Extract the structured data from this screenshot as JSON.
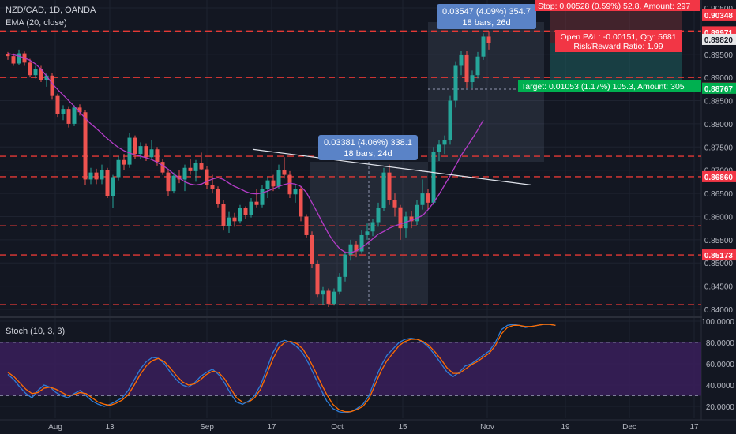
{
  "header": {
    "symbol_line": "NZD/CAD, 1D, OANDA",
    "indicator_line": "EMA (20, close)",
    "stoch_label": "Stoch (10, 3, 3)"
  },
  "colors": {
    "background": "#131722",
    "grid": "#1e2330",
    "up": "#26a69a",
    "down": "#ef5350",
    "ema": "#b43cc8",
    "stoch_k": "#2e7dd7",
    "stoch_d": "#ff6d00",
    "stoch_band": "#3a1f5a",
    "red_level": "#e53935",
    "tag_red": "#f23645",
    "tag_green": "#00b050",
    "callout": "#5a83c7"
  },
  "chart_data": [
    {
      "type": "candlestick",
      "title": "NZD/CAD, 1D, OANDA",
      "x_tick_labels": [
        "Aug",
        "13",
        "Sep",
        "17",
        "Oct",
        "15",
        "Nov",
        "19",
        "Dec",
        "17"
      ],
      "y_tick_labels": [
        "0.90500",
        "0.90000",
        "0.89500",
        "0.89000",
        "0.88500",
        "0.88000",
        "0.87500",
        "0.87000",
        "0.86500",
        "0.86000",
        "0.85500",
        "0.85000",
        "0.84500",
        "0.84000"
      ],
      "ylim": [
        0.8393,
        0.906
      ],
      "candles": [
        [
          0.895,
          0.8955,
          0.8938,
          0.8946
        ],
        [
          0.8946,
          0.8952,
          0.8925,
          0.893
        ],
        [
          0.893,
          0.896,
          0.8926,
          0.8952
        ],
        [
          0.8952,
          0.8956,
          0.8925,
          0.8932
        ],
        [
          0.8932,
          0.894,
          0.89,
          0.8905
        ],
        [
          0.8905,
          0.8925,
          0.8898,
          0.8918
        ],
        [
          0.8918,
          0.8925,
          0.889,
          0.8895
        ],
        [
          0.8895,
          0.891,
          0.888,
          0.8904
        ],
        [
          0.8904,
          0.891,
          0.8852,
          0.886
        ],
        [
          0.886,
          0.8865,
          0.8815,
          0.8822
        ],
        [
          0.8822,
          0.884,
          0.8808,
          0.8832
        ],
        [
          0.8832,
          0.8838,
          0.8792,
          0.88
        ],
        [
          0.88,
          0.884,
          0.8795,
          0.8835
        ],
        [
          0.8835,
          0.8842,
          0.8818,
          0.8825
        ],
        [
          0.8825,
          0.883,
          0.8668,
          0.868
        ],
        [
          0.868,
          0.8705,
          0.867,
          0.8695
        ],
        [
          0.8695,
          0.8703,
          0.867,
          0.868
        ],
        [
          0.868,
          0.8712,
          0.867,
          0.87
        ],
        [
          0.87,
          0.8705,
          0.864,
          0.8645
        ],
        [
          0.8645,
          0.869,
          0.8618,
          0.8685
        ],
        [
          0.8685,
          0.873,
          0.8678,
          0.8722
        ],
        [
          0.8722,
          0.8735,
          0.87,
          0.8712
        ],
        [
          0.8712,
          0.878,
          0.8705,
          0.877
        ],
        [
          0.877,
          0.8775,
          0.8725,
          0.8735
        ],
        [
          0.8735,
          0.876,
          0.8725,
          0.8752
        ],
        [
          0.8752,
          0.8758,
          0.872,
          0.8728
        ],
        [
          0.8728,
          0.8765,
          0.8722,
          0.8745
        ],
        [
          0.8745,
          0.875,
          0.871,
          0.8718
        ],
        [
          0.8718,
          0.8725,
          0.869,
          0.8695
        ],
        [
          0.8695,
          0.87,
          0.8645,
          0.8655
        ],
        [
          0.8655,
          0.8695,
          0.865,
          0.8688
        ],
        [
          0.8688,
          0.87,
          0.8672,
          0.868
        ],
        [
          0.868,
          0.8712,
          0.8655,
          0.8705
        ],
        [
          0.8705,
          0.8725,
          0.869,
          0.8698
        ],
        [
          0.8698,
          0.8722,
          0.8675,
          0.8715
        ],
        [
          0.8715,
          0.8738,
          0.87,
          0.8702
        ],
        [
          0.8702,
          0.8708,
          0.866,
          0.8668
        ],
        [
          0.8668,
          0.869,
          0.865,
          0.866
        ],
        [
          0.866,
          0.8665,
          0.862,
          0.8628
        ],
        [
          0.8628,
          0.8635,
          0.857,
          0.858
        ],
        [
          0.858,
          0.861,
          0.8565,
          0.8598
        ],
        [
          0.8598,
          0.8608,
          0.8578,
          0.859
        ],
        [
          0.859,
          0.8625,
          0.8585,
          0.8618
        ],
        [
          0.8618,
          0.8622,
          0.8595,
          0.8603
        ],
        [
          0.8603,
          0.864,
          0.8598,
          0.8632
        ],
        [
          0.8632,
          0.866,
          0.862,
          0.8625
        ],
        [
          0.8625,
          0.8668,
          0.862,
          0.866
        ],
        [
          0.866,
          0.8685,
          0.864,
          0.8678
        ],
        [
          0.8678,
          0.869,
          0.8655,
          0.8665
        ],
        [
          0.8665,
          0.8712,
          0.866,
          0.87
        ],
        [
          0.87,
          0.8728,
          0.8682,
          0.869
        ],
        [
          0.869,
          0.8698,
          0.864,
          0.8648
        ],
        [
          0.8648,
          0.8668,
          0.863,
          0.866
        ],
        [
          0.866,
          0.8665,
          0.859,
          0.86
        ],
        [
          0.86,
          0.8605,
          0.8555,
          0.856
        ],
        [
          0.856,
          0.8568,
          0.849,
          0.8498
        ],
        [
          0.8498,
          0.8505,
          0.8425,
          0.8432
        ],
        [
          0.8432,
          0.8448,
          0.841,
          0.844
        ],
        [
          0.844,
          0.8445,
          0.8405,
          0.8412
        ],
        [
          0.8412,
          0.8445,
          0.8408,
          0.8438
        ],
        [
          0.8438,
          0.8478,
          0.8432,
          0.847
        ],
        [
          0.847,
          0.8525,
          0.846,
          0.8518
        ],
        [
          0.8518,
          0.855,
          0.8505,
          0.854
        ],
        [
          0.854,
          0.8548,
          0.8512,
          0.8525
        ],
        [
          0.8525,
          0.857,
          0.852,
          0.856
        ],
        [
          0.856,
          0.8585,
          0.855,
          0.8568
        ],
        [
          0.8568,
          0.8595,
          0.8558,
          0.8588
        ],
        [
          0.8588,
          0.863,
          0.8578,
          0.8618
        ],
        [
          0.8618,
          0.8705,
          0.8612,
          0.8695
        ],
        [
          0.8695,
          0.8712,
          0.8625,
          0.8635
        ],
        [
          0.8635,
          0.865,
          0.86,
          0.862
        ],
        [
          0.862,
          0.8625,
          0.855,
          0.8575
        ],
        [
          0.8575,
          0.861,
          0.8555,
          0.86
        ],
        [
          0.86,
          0.8612,
          0.8575,
          0.859
        ],
        [
          0.859,
          0.8635,
          0.8582,
          0.8625
        ],
        [
          0.8625,
          0.868,
          0.8615,
          0.865
        ],
        [
          0.865,
          0.866,
          0.8615,
          0.863
        ],
        [
          0.863,
          0.875,
          0.8625,
          0.874
        ],
        [
          0.874,
          0.8765,
          0.872,
          0.8755
        ],
        [
          0.8755,
          0.8775,
          0.8735,
          0.8765
        ],
        [
          0.8765,
          0.886,
          0.8755,
          0.885
        ],
        [
          0.885,
          0.8935,
          0.8835,
          0.8925
        ],
        [
          0.8925,
          0.8958,
          0.8905,
          0.8948
        ],
        [
          0.8948,
          0.8958,
          0.8878,
          0.889
        ],
        [
          0.889,
          0.8915,
          0.8878,
          0.8905
        ],
        [
          0.8905,
          0.8955,
          0.8898,
          0.8945
        ],
        [
          0.8945,
          0.8995,
          0.8938,
          0.8988
        ],
        [
          0.8988,
          0.9,
          0.896,
          0.8975
        ]
      ],
      "ema_20": [
        0.8952,
        0.8949,
        0.8946,
        0.8942,
        0.8937,
        0.8929,
        0.8918,
        0.8903,
        0.8887,
        0.8874,
        0.8862,
        0.885,
        0.8838,
        0.8825,
        0.8812,
        0.88,
        0.879,
        0.8779,
        0.8768,
        0.8758,
        0.8749,
        0.8742,
        0.8737,
        0.8733,
        0.873,
        0.8727,
        0.8723,
        0.8717,
        0.871,
        0.8702,
        0.8692,
        0.8683,
        0.8675,
        0.867,
        0.8668,
        0.867,
        0.8676,
        0.8681,
        0.8684,
        0.868,
        0.8672,
        0.8665,
        0.866,
        0.8654,
        0.865,
        0.8649,
        0.8651,
        0.8655,
        0.866,
        0.8665,
        0.8669,
        0.8672,
        0.867,
        0.8665,
        0.8652,
        0.863,
        0.8608,
        0.8585,
        0.8563,
        0.8545,
        0.8531,
        0.8523,
        0.8522,
        0.8526,
        0.8533,
        0.8542,
        0.8552,
        0.8562,
        0.8568,
        0.8575,
        0.858,
        0.8584,
        0.8588,
        0.8592,
        0.8597,
        0.8602,
        0.8615,
        0.863,
        0.8648,
        0.8668,
        0.8688,
        0.871,
        0.8732,
        0.875,
        0.8768,
        0.8787,
        0.8808
      ],
      "trendline": [
        0.8745,
        0.8668
      ],
      "horizontal_levels": [
        0.9,
        0.89,
        0.873,
        0.8686,
        0.858,
        0.85173,
        0.841
      ],
      "price_tags": [
        {
          "value": 0.90348,
          "text": "0.90348",
          "style": "red"
        },
        {
          "value": 0.89983,
          "text": "0.89983",
          "style": "red"
        },
        {
          "value": 0.89971,
          "text": "0.89971",
          "style": "red"
        },
        {
          "value": 0.8982,
          "text": "0.89820",
          "style": "grey"
        },
        {
          "value": 0.8877,
          "text": "0.88770",
          "style": "red"
        },
        {
          "value": 0.88767,
          "text": "0.88767",
          "style": "green"
        },
        {
          "value": 0.8686,
          "text": "0.86860",
          "style": "red"
        },
        {
          "value": 0.85173,
          "text": "0.85173",
          "style": "red"
        }
      ],
      "callouts": [
        {
          "line1": "0.03381 (4.06%) 338.1",
          "line2": "18 bars, 24d"
        },
        {
          "line1": "0.03547 (4.09%) 354.7",
          "line2": "18 bars, 26d"
        }
      ],
      "position": {
        "stop_text": "Stop: 0.00528 (0.59%) 52.8, Amount: 297",
        "pl_text": "Open P&L: -0.00151, Qty: 5681",
        "rr_text": "Risk/Reward Ratio: 1.99",
        "target_text": "Target: 0.01053 (1.17%) 105.3, Amount: 305"
      }
    },
    {
      "type": "line",
      "title": "Stoch (10, 3, 3)",
      "y_tick_labels": [
        "100.0000",
        "80.0000",
        "60.0000",
        "40.0000",
        "20.0000"
      ],
      "ylim": [
        12,
        100
      ],
      "band": [
        80,
        30
      ],
      "series": [
        {
          "values": [
            50,
            45,
            38,
            32,
            28,
            35,
            40,
            38,
            33,
            30,
            28,
            32,
            35,
            30,
            25,
            22,
            20,
            22,
            25,
            28,
            35,
            45,
            55,
            62,
            66,
            65,
            60,
            52,
            45,
            40,
            38,
            42,
            48,
            52,
            55,
            50,
            42,
            32,
            24,
            22,
            25,
            30,
            40,
            55,
            70,
            80,
            82,
            80,
            76,
            70,
            60,
            48,
            36,
            25,
            18,
            15,
            14,
            15,
            18,
            22,
            30,
            45,
            58,
            68,
            74,
            80,
            83,
            84,
            83,
            80,
            75,
            68,
            60,
            52,
            48,
            52,
            58,
            60,
            64,
            68,
            72,
            80,
            92,
            96,
            97,
            96,
            94,
            95,
            96,
            97,
            97,
            96
          ]
        },
        {
          "values": [
            52,
            48,
            42,
            36,
            32,
            33,
            37,
            38,
            36,
            33,
            30,
            31,
            33,
            32,
            28,
            24,
            22,
            21,
            23,
            26,
            31,
            40,
            50,
            58,
            63,
            65,
            62,
            56,
            49,
            43,
            40,
            41,
            45,
            50,
            53,
            52,
            46,
            37,
            28,
            24,
            24,
            28,
            36,
            50,
            64,
            75,
            80,
            81,
            79,
            74,
            65,
            54,
            42,
            31,
            22,
            17,
            15,
            15,
            17,
            20,
            27,
            40,
            53,
            63,
            70,
            77,
            81,
            83,
            83,
            81,
            77,
            71,
            64,
            56,
            51,
            51,
            55,
            59,
            62,
            66,
            70,
            77,
            88,
            94,
            96,
            96,
            95,
            95,
            96,
            97,
            97,
            96
          ]
        }
      ]
    }
  ]
}
